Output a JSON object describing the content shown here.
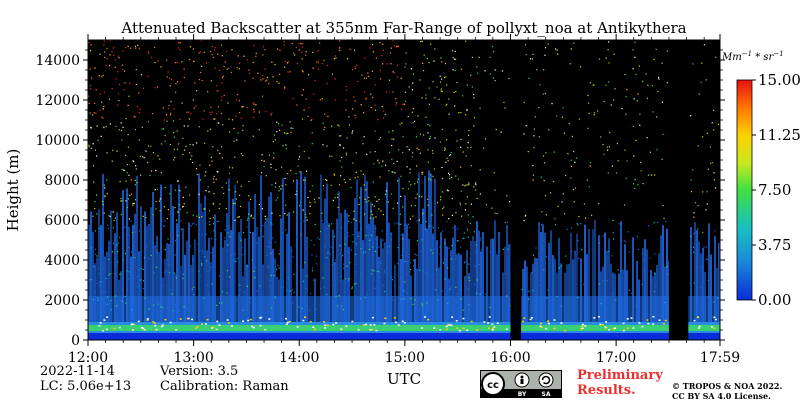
{
  "chart_data": {
    "type": "heatmap",
    "title": "Attenuated Backscatter at 355nm Far-Range of pollyxt_noa at Antikythera",
    "xlabel": "UTC",
    "ylabel": "Height (m)",
    "x_ticks": [
      "12:00",
      "13:00",
      "14:00",
      "15:00",
      "16:00",
      "17:00",
      "17:59"
    ],
    "x_range": [
      "12:00",
      "17:59"
    ],
    "y_ticks": [
      0,
      2000,
      4000,
      6000,
      8000,
      10000,
      12000,
      14000
    ],
    "y_range": [
      0,
      15000
    ],
    "colorbar": {
      "unit_label": "Mm^-1 * sr^-1",
      "ticks": [
        "0.00",
        "3.75",
        "7.50",
        "11.25",
        "15.00"
      ],
      "range": [
        0,
        15
      ],
      "colormap": [
        "#0a2cd8",
        "#1a8cd8",
        "#18c0c0",
        "#40e040",
        "#c8e820",
        "#ffd000",
        "#ff7a00",
        "#e81010"
      ]
    },
    "grid": false,
    "colors": {
      "background": "#000000",
      "low_signal": "#1f5fd0",
      "boundary_layer": "#2a8ce0",
      "aerosol_layer": "#38d070",
      "cloud_top": "#ffffff"
    },
    "signal_blocked_intervals": [
      [
        "16:00",
        "16:06"
      ],
      [
        "17:30",
        "17:41"
      ]
    ],
    "boundary_layer_top_m": 900
  },
  "info": {
    "date": "2022-11-14",
    "lc": "LC: 5.06e+13",
    "version": "Version: 3.5",
    "calibration": "Calibration: Raman"
  },
  "footer": {
    "preliminary_line1": "Preliminary",
    "preliminary_line2": "Results.",
    "copyright_line1": "© TROPOS & NOA 2022.",
    "copyright_line2": "CC BY SA 4.0 License.",
    "cc_badge_by": "BY",
    "cc_badge_sa": "SA",
    "cc_badge_cc": "cc"
  }
}
